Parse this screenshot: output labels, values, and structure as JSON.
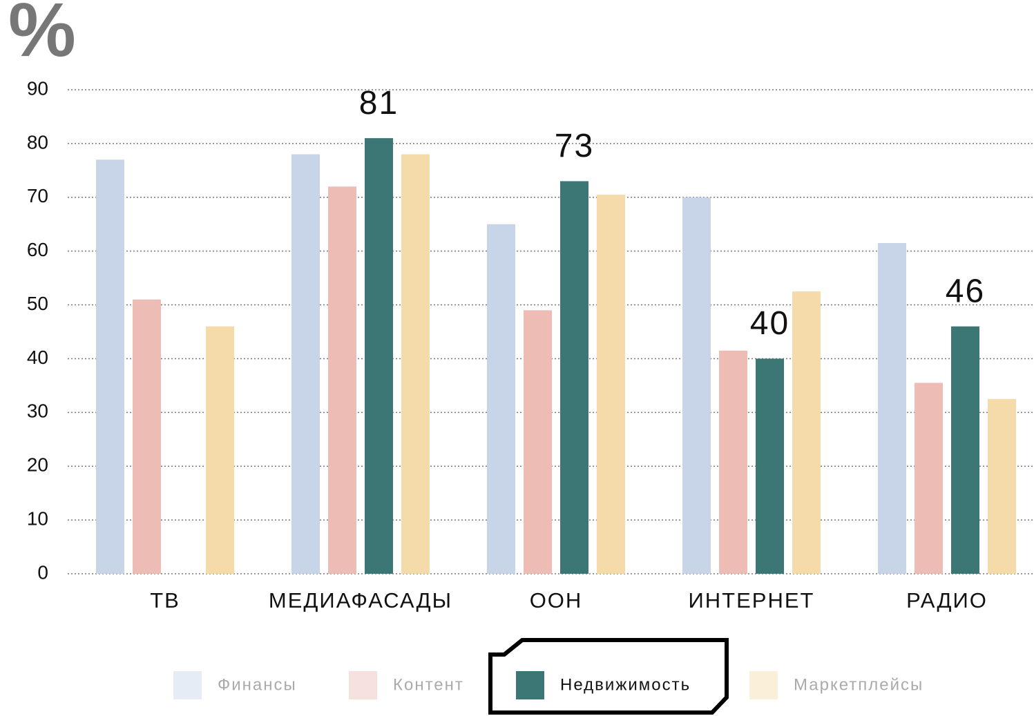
{
  "chart_data": {
    "type": "bar",
    "y_label": "%",
    "categories": [
      "ТВ",
      "МЕДИАФАСАДЫ",
      "ООН",
      "ИНТЕРНЕТ",
      "РАДИО"
    ],
    "series": [
      {
        "name": "Финансы",
        "color": "#c8d4e8",
        "values": [
          77,
          78,
          65,
          70,
          61.5
        ]
      },
      {
        "name": "Контент",
        "color": "#edbdb5",
        "values": [
          51,
          72,
          49,
          41.5,
          35.5
        ]
      },
      {
        "name": "Недвижимость",
        "color": "#3c7775",
        "values": [
          null,
          81,
          73,
          40,
          46
        ]
      },
      {
        "name": "Маркетплейсы",
        "color": "#f5dbaa",
        "values": [
          46,
          78,
          70.5,
          52.5,
          32.5
        ]
      }
    ],
    "selected_series": 2,
    "ylim": [
      0,
      90
    ],
    "yticks": [
      0,
      10,
      20,
      30,
      40,
      50,
      60,
      70,
      80,
      90
    ],
    "grid": true
  }
}
